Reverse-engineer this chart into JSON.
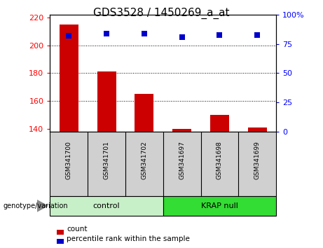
{
  "title": "GDS3528 / 1450269_a_at",
  "samples": [
    "GSM341700",
    "GSM341701",
    "GSM341702",
    "GSM341697",
    "GSM341698",
    "GSM341699"
  ],
  "bar_values": [
    215,
    181,
    165,
    140,
    150,
    141
  ],
  "bar_bottom": 138,
  "percentile_values": [
    82,
    84,
    84,
    81,
    83,
    83
  ],
  "bar_color": "#cc0000",
  "percentile_color": "#0000cc",
  "ylim_left": [
    138,
    222
  ],
  "ylim_right": [
    0,
    100
  ],
  "yticks_left": [
    140,
    160,
    180,
    200,
    220
  ],
  "yticks_right": [
    0,
    25,
    50,
    75,
    100
  ],
  "ytick_labels_right": [
    "0",
    "25",
    "50",
    "75",
    "100%"
  ],
  "grid_values": [
    160,
    180,
    200
  ],
  "groups": [
    {
      "label": "control",
      "indices": [
        0,
        1,
        2
      ],
      "color": "#c8f0c8"
    },
    {
      "label": "KRAP null",
      "indices": [
        3,
        4,
        5
      ],
      "color": "#33dd33"
    }
  ],
  "group_label_prefix": "genotype/variation",
  "legend_count_label": "count",
  "legend_percentile_label": "percentile rank within the sample",
  "title_fontsize": 11,
  "tick_label_fontsize": 8,
  "bar_width": 0.5,
  "tick_area_color": "#d0d0d0",
  "plot_bg_color": "#ffffff",
  "fig_bg_color": "#ffffff"
}
